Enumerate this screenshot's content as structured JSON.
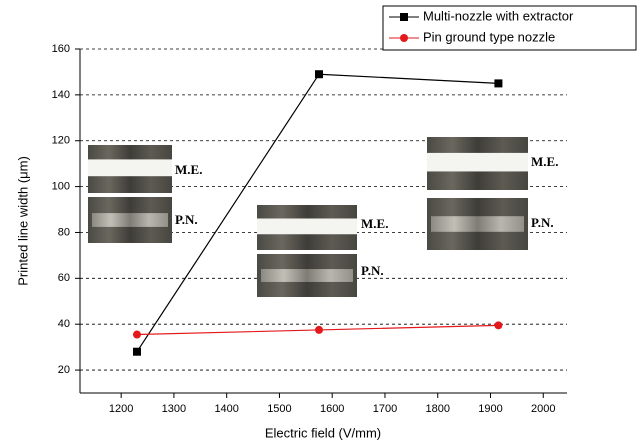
{
  "chart_data": {
    "type": "line",
    "x_label": "Electric field (V/mm)",
    "y_label": "Printed line width (μm)",
    "xlim": [
      1122,
      2045
    ],
    "xticks": [
      1200,
      1300,
      1400,
      1500,
      1600,
      1700,
      1800,
      1900,
      2000
    ],
    "ylim": [
      10,
      160
    ],
    "yticks": [
      20,
      40,
      60,
      80,
      100,
      120,
      140,
      160
    ],
    "grid": true,
    "legend": "upper right",
    "series": [
      {
        "name": "Multi-nozzle with extractor",
        "color": "#000000",
        "marker": "square",
        "x": [
          1230,
          1575,
          1915
        ],
        "values": [
          28,
          149,
          145
        ]
      },
      {
        "name": "Pin ground type nozzle",
        "color": "#e31a1c",
        "marker": "circle",
        "x": [
          1230,
          1575,
          1915
        ],
        "values": [
          35.5,
          37.5,
          39.5
        ]
      }
    ],
    "annotations": [
      "M.E.",
      "P.N.",
      "M.E.",
      "P.N.",
      "M.E.",
      "P.N."
    ]
  }
}
